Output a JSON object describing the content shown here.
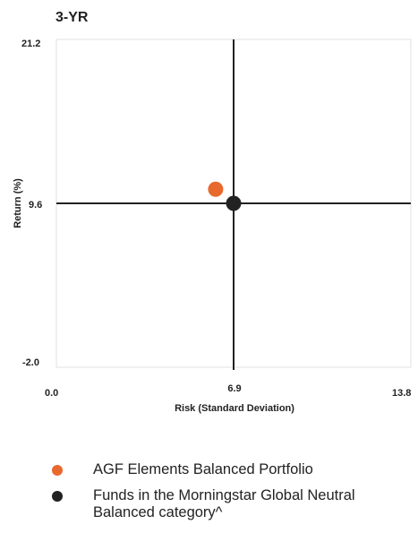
{
  "chart_data": {
    "type": "scatter",
    "title": "3-YR",
    "xlabel": "Risk (Standard Deviation)",
    "ylabel": "Return (%)",
    "xlim": [
      0.0,
      13.8
    ],
    "ylim": [
      -2.0,
      21.2
    ],
    "x_tick_labels": [
      "0.0",
      "6.9",
      "13.8"
    ],
    "y_tick_labels": [
      "21.2",
      "9.6",
      "-2.0"
    ],
    "crosshair": {
      "x": 6.9,
      "y": 9.6
    },
    "grid": false,
    "legend_position": "bottom",
    "series": [
      {
        "name": "AGF Elements Balanced Portfolio",
        "x": 6.2,
        "y": 10.6,
        "color": "#E8692E"
      },
      {
        "name": "Funds in the Morningstar Global Neutral Balanced category^",
        "x": 6.9,
        "y": 9.6,
        "color": "#222222"
      }
    ]
  }
}
